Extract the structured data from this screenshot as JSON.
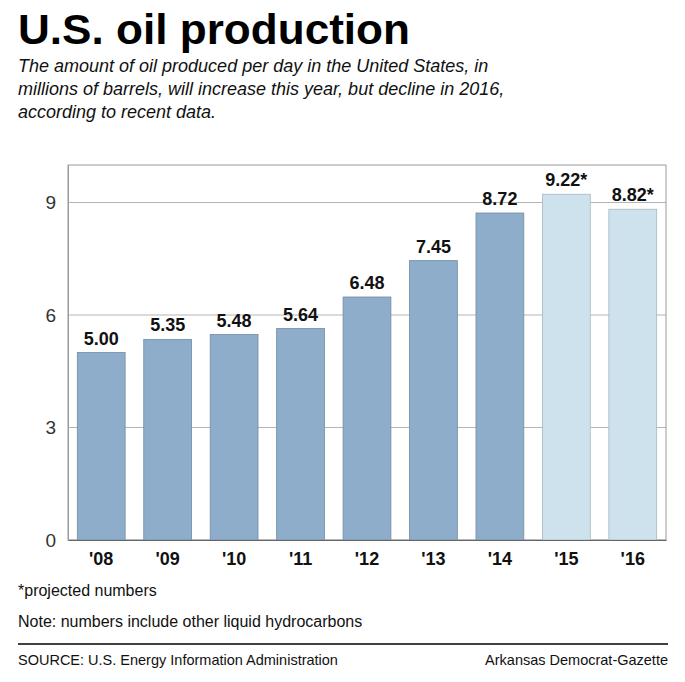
{
  "chart_data": {
    "type": "bar",
    "title": "U.S. oil production",
    "subtitle": [
      "The amount of oil produced per day in the United States, in",
      "millions of barrels, will increase this year, but decline in 2016,",
      "according to recent data."
    ],
    "categories": [
      "'08",
      "'09",
      "'10",
      "'11",
      "'12",
      "'13",
      "'14",
      "'15",
      "'16"
    ],
    "values": [
      5.0,
      5.35,
      5.48,
      5.64,
      6.48,
      7.45,
      8.72,
      9.22,
      8.82
    ],
    "value_labels": [
      "5.00",
      "5.35",
      "5.48",
      "5.64",
      "6.48",
      "7.45",
      "8.72",
      "9.22*",
      "8.82*"
    ],
    "colors": [
      "#8eadcb",
      "#8eadcb",
      "#8eadcb",
      "#8eadcb",
      "#8eadcb",
      "#8eadcb",
      "#8eadcb",
      "#cde2ec",
      "#cde2ec"
    ],
    "ylim": [
      0,
      10
    ],
    "yticks": [
      0,
      3,
      6,
      9
    ],
    "grid": true,
    "data_labels": true,
    "annotations": [
      "*projected numbers",
      "Note: numbers include other liquid hydrocarbons",
      "SOURCE: U.S. Energy Information Administration",
      "Arkansas Democrat-Gazette"
    ]
  }
}
